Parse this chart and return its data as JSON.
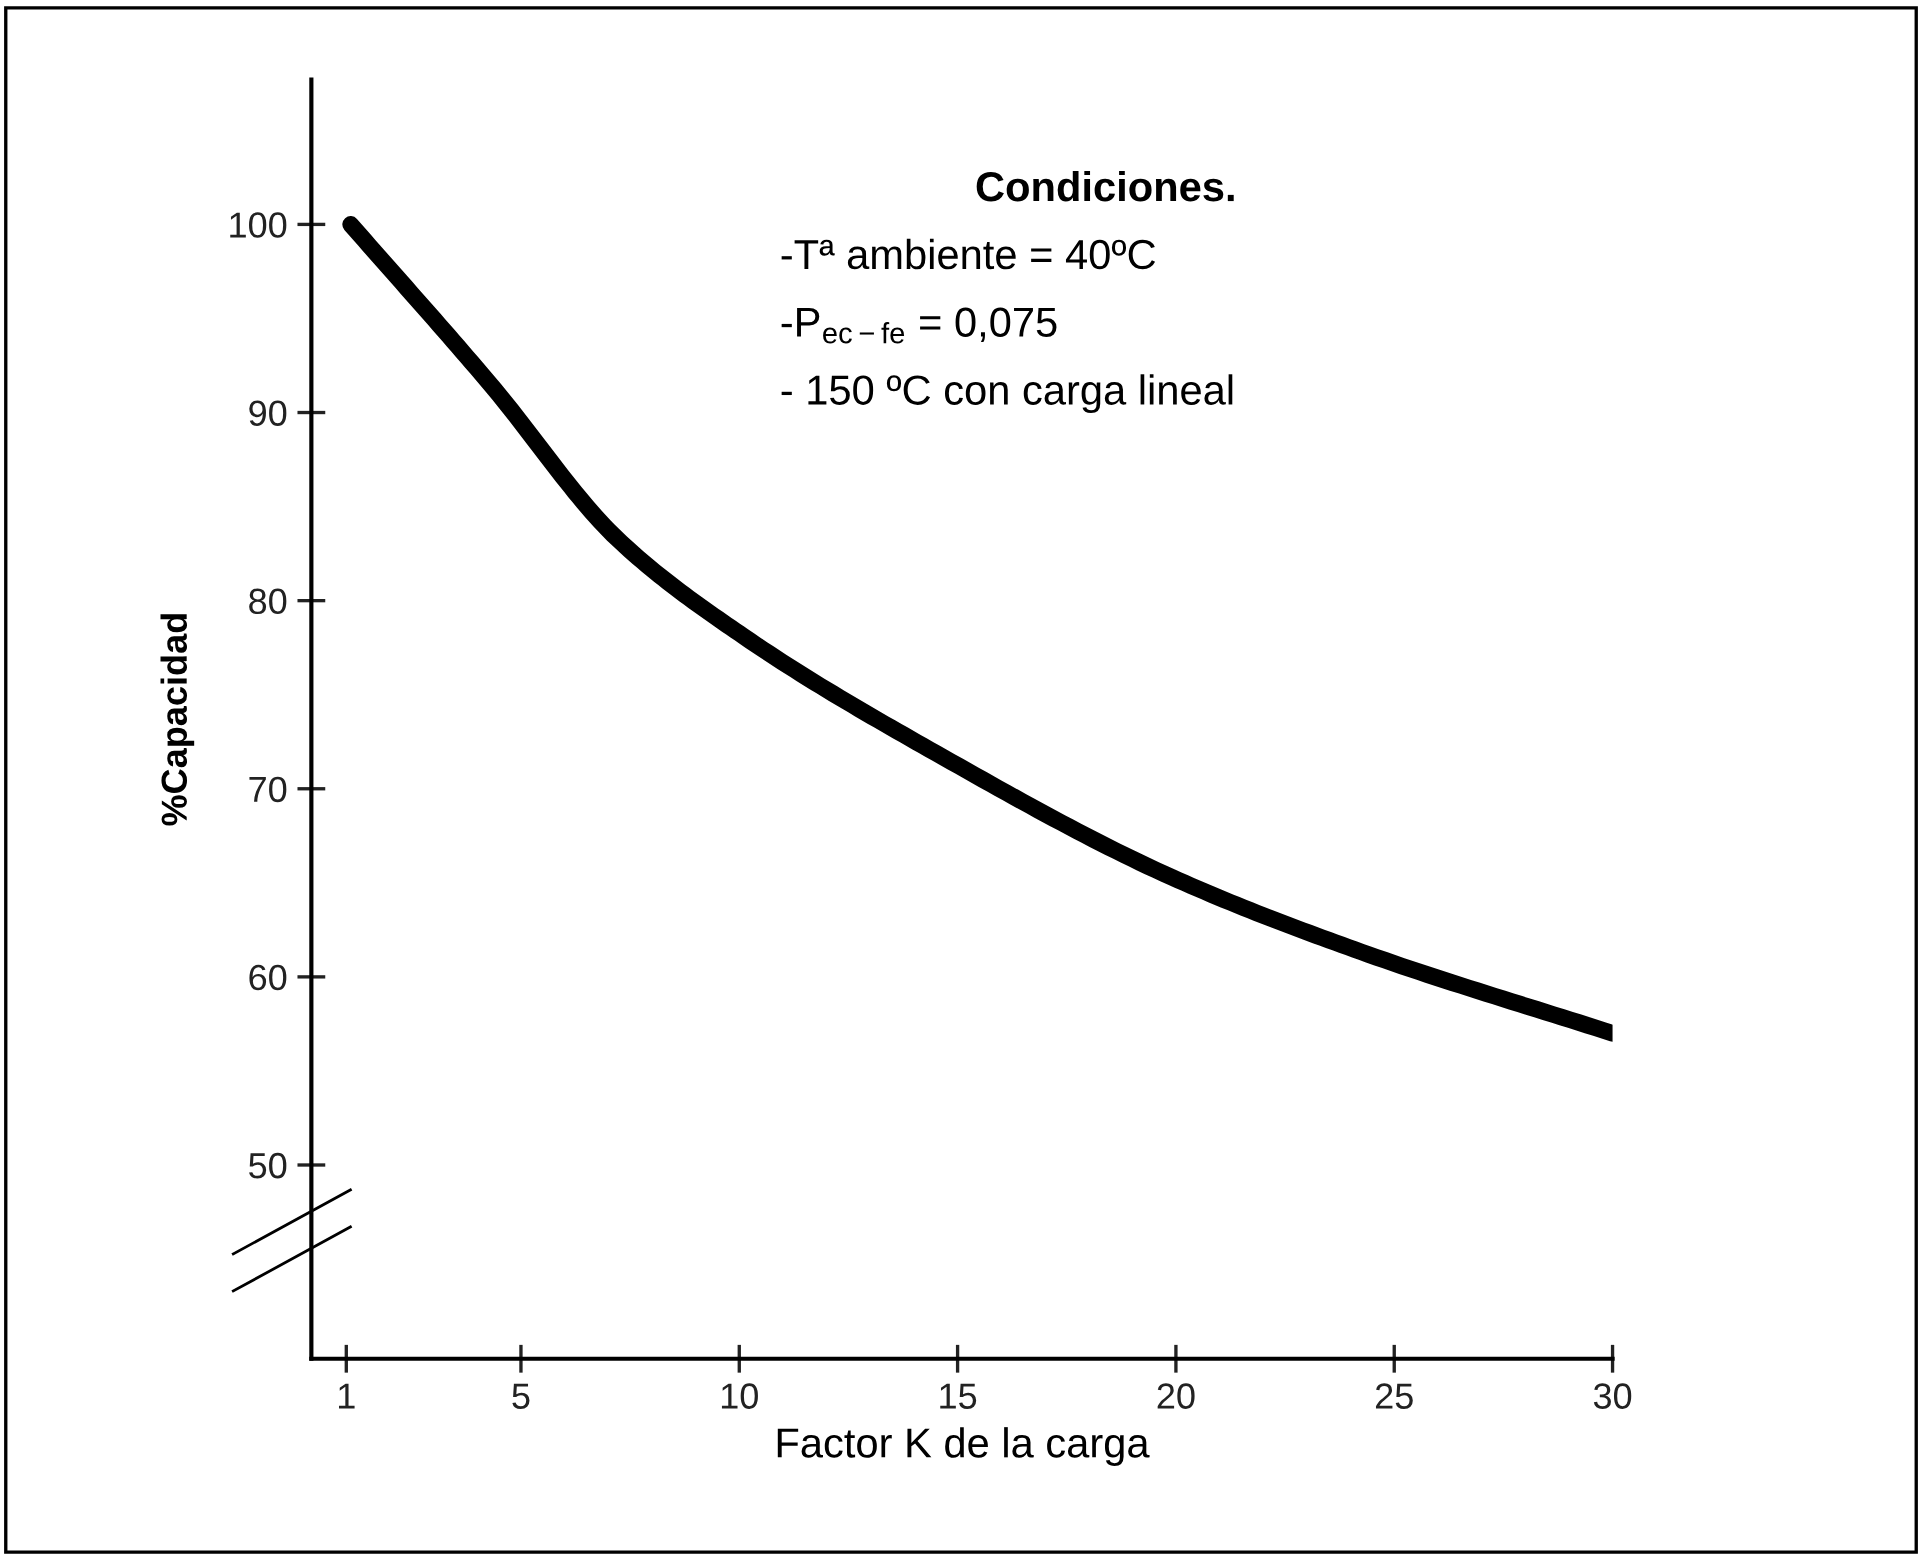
{
  "chart_data": {
    "type": "line",
    "xlabel": "Factor K de la carga",
    "ylabel": "%Capacidad",
    "series": [
      {
        "color": "#000000",
        "x": [
          1.1,
          4.3,
          7.2,
          10.1,
          14.5,
          19.9,
          24.4,
          30
        ],
        "values": [
          100,
          91.5,
          83.3,
          78.1,
          71.9,
          65.3,
          61.2,
          57
        ]
      }
    ],
    "xlim": [
      0.2,
      30
    ],
    "xticks": [
      1,
      5,
      10,
      15,
      20,
      25,
      30
    ],
    "ylim": [
      39.7,
      107.7
    ],
    "yticks": [
      50,
      60,
      70,
      80,
      90,
      100
    ],
    "annotations": [
      "Condiciones.",
      "-Tª ambiente = 40ºC",
      "-P$_{ec−fe}$ = 0,075",
      "- 150 ºC con carga lineal"
    ],
    "grid": false,
    "legend": false,
    "marker": "none",
    "line_style": "solid"
  }
}
